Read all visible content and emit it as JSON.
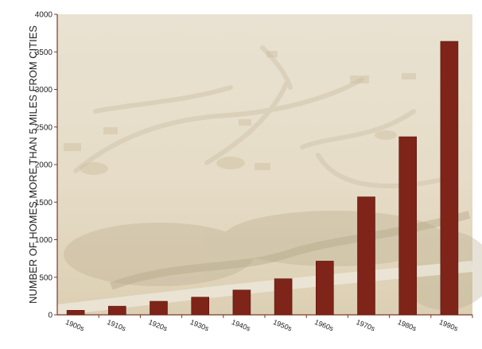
{
  "chart_data": {
    "type": "bar",
    "title": "",
    "xlabel": "",
    "ylabel": "NUMBER OF HOMES MORE THAN 5 MILES FROM CITIES",
    "categories": [
      "1900s",
      "1910s",
      "1920s",
      "1930s",
      "1940s",
      "1950s",
      "1960s",
      "1970s",
      "1980s",
      "1990s"
    ],
    "values": [
      60,
      115,
      180,
      235,
      330,
      480,
      715,
      1570,
      2370,
      3640
    ],
    "ylim": [
      0,
      4000
    ],
    "yticks": [
      "0",
      "500",
      "1000",
      "1500",
      "2000",
      "2500",
      "3000",
      "3500",
      "4000"
    ],
    "grid": false,
    "colors": {
      "bar": "#7e2418",
      "bar_edge": "#5a160e",
      "axis": "#7a3a2a",
      "background_photo_tint": "#e7dcc6"
    }
  }
}
